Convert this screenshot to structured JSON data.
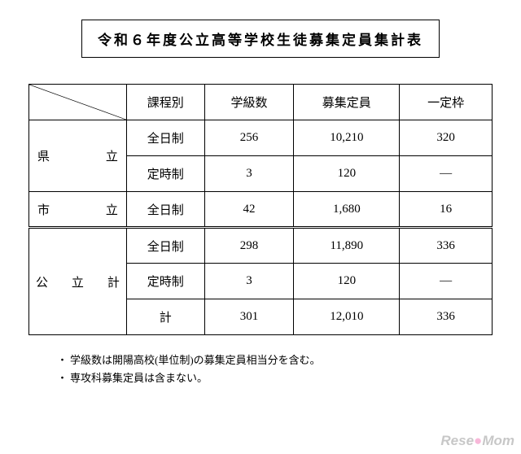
{
  "title": "令和６年度公立高等学校生徒募集定員集計表",
  "headers": {
    "course_type": "課程別",
    "class_count": "学級数",
    "capacity": "募集定員",
    "frame": "一定枠"
  },
  "rows": [
    {
      "cat_left": "県",
      "cat_right": "立",
      "rowspan": 2,
      "type": "全日制",
      "classes": "256",
      "capacity": "10,210",
      "frame": "320"
    },
    {
      "type": "定時制",
      "classes": "3",
      "capacity": "120",
      "frame": "―"
    },
    {
      "cat_left": "市",
      "cat_right": "立",
      "rowspan": 1,
      "type": "全日制",
      "classes": "42",
      "capacity": "1,680",
      "frame": "16"
    },
    {
      "cat_l": "公",
      "cat_c": "立",
      "cat_r": "計",
      "rowspan": 3,
      "double": true,
      "type": "全日制",
      "classes": "298",
      "capacity": "11,890",
      "frame": "336"
    },
    {
      "type": "定時制",
      "classes": "3",
      "capacity": "120",
      "frame": "―"
    },
    {
      "type": "計",
      "classes": "301",
      "capacity": "12,010",
      "frame": "336"
    }
  ],
  "notes": [
    "学級数は開陽高校(単位制)の募集定員相当分を含む。",
    "専攻科募集定員は含まない。"
  ],
  "watermark": {
    "text1": "Rese",
    "dot": "●",
    "text2": "Mom"
  }
}
